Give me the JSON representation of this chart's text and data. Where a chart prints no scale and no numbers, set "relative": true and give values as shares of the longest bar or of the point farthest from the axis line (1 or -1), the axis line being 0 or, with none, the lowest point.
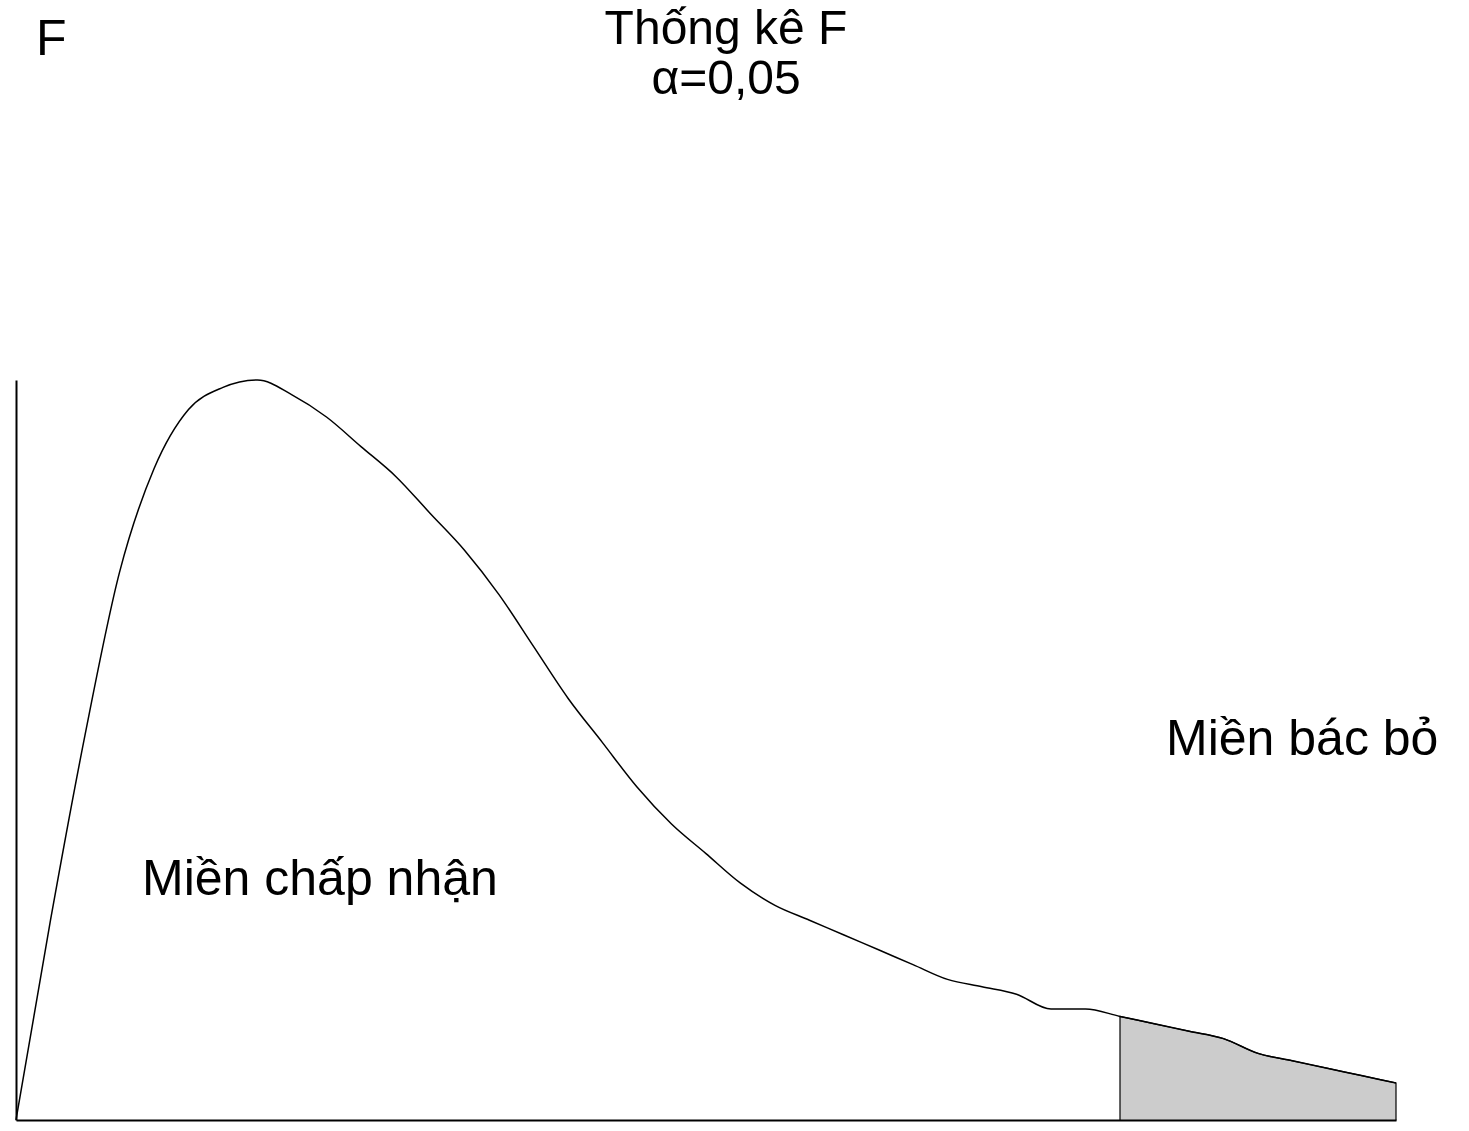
{
  "chart_data": {
    "type": "line",
    "title": "Thống kê F",
    "subtitle": "α=0,05",
    "relative": true,
    "annotations": [
      "F",
      "Miền chấp nhận",
      "Miền bác bỏ"
    ],
    "categories": [
      null,
      null,
      null,
      null,
      null,
      null,
      null,
      null,
      null,
      null,
      null,
      null,
      null,
      null,
      null,
      null,
      null,
      null,
      null,
      null,
      null,
      null,
      null,
      null,
      null,
      null,
      null,
      null,
      null,
      null,
      null,
      null,
      null,
      null,
      null,
      null,
      null,
      null,
      null,
      null,
      null
    ],
    "series": [
      {
        "color": "#000000",
        "values": [
          0,
          0.27,
          0.52,
          0.74,
          0.88,
          0.96,
          0.99,
          1,
          0.98,
          0.95,
          0.91,
          0.87,
          0.82,
          0.77,
          0.71,
          0.64,
          0.57,
          0.51,
          0.45,
          0.4,
          0.36,
          0.32,
          0.29,
          0.27,
          0.25,
          0.23,
          0.21,
          0.19,
          0.18,
          0.17,
          0.15,
          0.15,
          0.14,
          0.13,
          0.12,
          0.11,
          0.09,
          0.08,
          0.07,
          0.06,
          0.05
        ]
      },
      {
        "type": "area",
        "color": "#cccccc",
        "values": [
          null,
          null,
          null,
          null,
          null,
          null,
          null,
          null,
          null,
          null,
          null,
          null,
          null,
          null,
          null,
          null,
          null,
          null,
          null,
          null,
          null,
          null,
          null,
          null,
          null,
          null,
          null,
          null,
          null,
          null,
          null,
          null,
          0.14,
          0.13,
          0.12,
          0.11,
          0.09,
          0.08,
          0.07,
          0.06,
          0.05
        ]
      }
    ]
  }
}
